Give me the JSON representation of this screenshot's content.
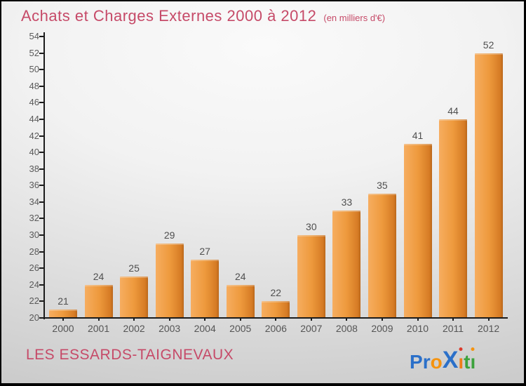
{
  "header": {
    "title": "Achats et Charges Externes 2000 à 2012",
    "subtitle": "(en milliers d'€)"
  },
  "chart_data": {
    "type": "bar",
    "title": "Achats et Charges Externes 2000 à 2012",
    "subtitle": "(en milliers d'€)",
    "categories": [
      "2000",
      "2001",
      "2002",
      "2003",
      "2004",
      "2005",
      "2006",
      "2007",
      "2008",
      "2009",
      "2010",
      "2011",
      "2012"
    ],
    "values": [
      21,
      24,
      25,
      29,
      27,
      24,
      22,
      30,
      33,
      35,
      41,
      44,
      52
    ],
    "xlabel": "",
    "ylabel": "",
    "ylim": [
      20,
      54
    ],
    "ytick_step": 2,
    "grid": false,
    "legend": false,
    "bar_gradient_left": "#f6ad60",
    "bar_gradient_mid": "#ee9a3d",
    "bar_gradient_right": "#d0741f",
    "value_label_color": "#4f4f4f",
    "axis_color": "#1c1c1c",
    "tick_label_color": "#5a5a5a"
  },
  "footer": {
    "org_name": "LES ESSARDS-TAIGNEVAUX",
    "logo_text": "ProXiti",
    "logo_letters": [
      {
        "ch": "P",
        "color": "#2b70c9",
        "size": 28
      },
      {
        "ch": "r",
        "color": "#2b70c9",
        "size": 28
      },
      {
        "ch": "o",
        "color": "#f5930f",
        "size": 28
      },
      {
        "ch": "X",
        "color": "#2b70c9",
        "size": 34
      },
      {
        "ch": "ı",
        "color": "#ef7e1a",
        "size": 28,
        "dot": "#dd3b2b"
      },
      {
        "ch": "t",
        "color": "#3da23d",
        "size": 28
      },
      {
        "ch": "ı",
        "color": "#3da23d",
        "size": 28,
        "dot": "#f5930f"
      }
    ]
  },
  "colors": {
    "title": "#c64a68",
    "background_top": "#fafafa",
    "background_bottom": "#cbcbcb",
    "border": "#000000"
  }
}
